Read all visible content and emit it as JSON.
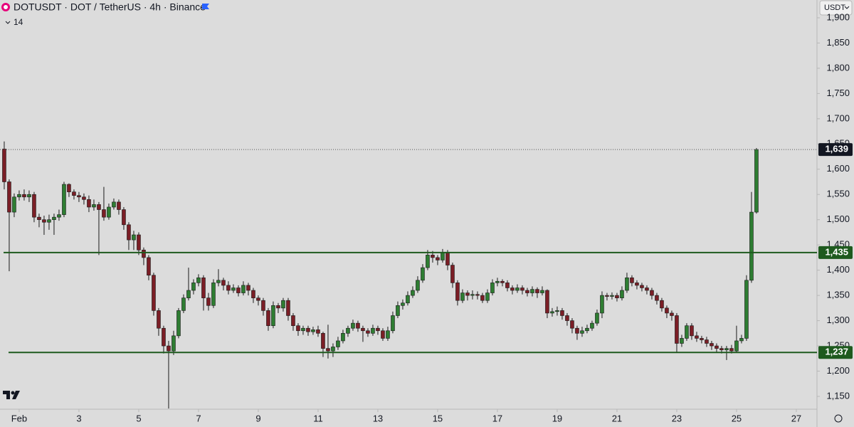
{
  "chart_data": {
    "type": "candlestick",
    "title": "DOTUSDT · DOT / TetherUS · 4h · Binance",
    "indicator_count": "14",
    "currency": "USDT",
    "up_color": "#2e7d32",
    "down_color": "#7b1e26",
    "x": [
      -12,
      -8,
      -4,
      0,
      4,
      8,
      12,
      16,
      20,
      24,
      28,
      32,
      36,
      40,
      44,
      48,
      52,
      56,
      60,
      64,
      68,
      72,
      76,
      80,
      84,
      88,
      92,
      96,
      100,
      104,
      108,
      112,
      116,
      120,
      124,
      128,
      132,
      136,
      140,
      144,
      148,
      152,
      156,
      160,
      164,
      168,
      172,
      176,
      180,
      184,
      188,
      192,
      196,
      200,
      204,
      208,
      212,
      216,
      220,
      224,
      228,
      232,
      236,
      240,
      244,
      248,
      252,
      256,
      260,
      264,
      268,
      272,
      276,
      280,
      284,
      288,
      292,
      296,
      300,
      304,
      308,
      312,
      316,
      320,
      324,
      328,
      332,
      336,
      340,
      344,
      348,
      352,
      356,
      360,
      364,
      368,
      372,
      376,
      380,
      384,
      388,
      392,
      396,
      400,
      404,
      408,
      412,
      416,
      420,
      424,
      428,
      432,
      436,
      440,
      444,
      448,
      452,
      456,
      460,
      464,
      468,
      472,
      476,
      480,
      484,
      488,
      492,
      496,
      500,
      504,
      508,
      512,
      516,
      520,
      524,
      528,
      532,
      536,
      540,
      544,
      548,
      552,
      556,
      560,
      564,
      568,
      572,
      576,
      580,
      584,
      588,
      592
    ],
    "open": [
      1640,
      1575,
      1515,
      1545,
      1550,
      1545,
      1550,
      1505,
      1500,
      1495,
      1500,
      1505,
      1510,
      1570,
      1555,
      1548,
      1545,
      1540,
      1525,
      1530,
      1520,
      1505,
      1525,
      1535,
      1520,
      1490,
      1460,
      1470,
      1440,
      1425,
      1390,
      1320,
      1285,
      1250,
      1240,
      1270,
      1320,
      1345,
      1360,
      1375,
      1385,
      1345,
      1330,
      1375,
      1380,
      1370,
      1360,
      1365,
      1355,
      1370,
      1360,
      1345,
      1340,
      1320,
      1290,
      1330,
      1325,
      1340,
      1310,
      1290,
      1280,
      1285,
      1278,
      1282,
      1275,
      1245,
      1240,
      1248,
      1260,
      1275,
      1285,
      1295,
      1285,
      1280,
      1275,
      1285,
      1280,
      1265,
      1280,
      1310,
      1330,
      1335,
      1350,
      1360,
      1380,
      1405,
      1430,
      1425,
      1420,
      1435,
      1410,
      1375,
      1340,
      1355,
      1350,
      1352,
      1350,
      1340,
      1355,
      1375,
      1378,
      1375,
      1365,
      1360,
      1365,
      1360,
      1355,
      1362,
      1355,
      1360,
      1315,
      1318,
      1320,
      1310,
      1300,
      1285,
      1275,
      1280,
      1285,
      1295,
      1315,
      1350,
      1348,
      1350,
      1345,
      1360,
      1385,
      1375,
      1370,
      1365,
      1360,
      1350,
      1340,
      1325,
      1315,
      1310,
      1255,
      1265,
      1290,
      1270,
      1265,
      1262,
      1255,
      1250,
      1245,
      1242,
      1245,
      1240,
      1260,
      1265,
      1380,
      1515
    ],
    "high": [
      1655,
      1580,
      1552,
      1558,
      1560,
      1558,
      1555,
      1512,
      1508,
      1510,
      1512,
      1520,
      1575,
      1572,
      1560,
      1555,
      1552,
      1548,
      1540,
      1535,
      1565,
      1532,
      1542,
      1540,
      1525,
      1495,
      1478,
      1475,
      1445,
      1430,
      1395,
      1325,
      1290,
      1260,
      1280,
      1325,
      1352,
      1405,
      1382,
      1392,
      1390,
      1355,
      1382,
      1402,
      1385,
      1378,
      1372,
      1370,
      1378,
      1375,
      1365,
      1350,
      1345,
      1325,
      1338,
      1335,
      1345,
      1345,
      1315,
      1295,
      1290,
      1290,
      1288,
      1290,
      1278,
      1292,
      1255,
      1268,
      1282,
      1290,
      1302,
      1300,
      1290,
      1285,
      1292,
      1290,
      1285,
      1288,
      1318,
      1338,
      1342,
      1358,
      1368,
      1388,
      1412,
      1440,
      1438,
      1430,
      1442,
      1440,
      1415,
      1380,
      1362,
      1360,
      1360,
      1358,
      1355,
      1362,
      1382,
      1385,
      1382,
      1380,
      1370,
      1372,
      1370,
      1365,
      1368,
      1366,
      1368,
      1362,
      1325,
      1328,
      1325,
      1315,
      1305,
      1290,
      1288,
      1292,
      1300,
      1322,
      1358,
      1355,
      1356,
      1355,
      1368,
      1395,
      1390,
      1380,
      1375,
      1370,
      1365,
      1355,
      1345,
      1330,
      1320,
      1315,
      1272,
      1295,
      1295,
      1278,
      1270,
      1268,
      1260,
      1255,
      1250,
      1250,
      1252,
      1290,
      1272,
      1390,
      1555,
      1642
    ],
    "low": [
      1560,
      1398,
      1505,
      1538,
      1538,
      1535,
      1495,
      1485,
      1470,
      1480,
      1470,
      1498,
      1505,
      1545,
      1540,
      1535,
      1530,
      1515,
      1518,
      1430,
      1498,
      1500,
      1520,
      1510,
      1480,
      1440,
      1440,
      1430,
      1410,
      1380,
      1310,
      1270,
      1235,
      1126,
      1232,
      1265,
      1315,
      1340,
      1352,
      1368,
      1320,
      1320,
      1325,
      1368,
      1360,
      1352,
      1355,
      1348,
      1350,
      1350,
      1335,
      1330,
      1310,
      1280,
      1285,
      1315,
      1318,
      1300,
      1280,
      1270,
      1272,
      1270,
      1272,
      1268,
      1228,
      1225,
      1228,
      1242,
      1255,
      1268,
      1280,
      1278,
      1258,
      1268,
      1270,
      1272,
      1260,
      1260,
      1275,
      1305,
      1322,
      1330,
      1345,
      1355,
      1375,
      1400,
      1415,
      1410,
      1415,
      1400,
      1365,
      1330,
      1335,
      1340,
      1342,
      1342,
      1335,
      1335,
      1350,
      1368,
      1368,
      1358,
      1352,
      1355,
      1352,
      1348,
      1348,
      1345,
      1350,
      1305,
      1308,
      1310,
      1302,
      1290,
      1275,
      1262,
      1268,
      1275,
      1280,
      1290,
      1305,
      1340,
      1342,
      1338,
      1340,
      1355,
      1368,
      1362,
      1358,
      1352,
      1342,
      1332,
      1318,
      1305,
      1300,
      1238,
      1248,
      1260,
      1262,
      1258,
      1255,
      1248,
      1242,
      1238,
      1235,
      1222,
      1235,
      1238,
      1255,
      1260,
      1375,
      1512
    ],
    "close": [
      1575,
      1515,
      1545,
      1550,
      1545,
      1550,
      1505,
      1500,
      1495,
      1500,
      1505,
      1510,
      1570,
      1555,
      1548,
      1545,
      1540,
      1525,
      1530,
      1520,
      1505,
      1525,
      1535,
      1520,
      1490,
      1460,
      1470,
      1440,
      1425,
      1390,
      1320,
      1285,
      1250,
      1240,
      1270,
      1320,
      1345,
      1360,
      1375,
      1385,
      1345,
      1330,
      1375,
      1380,
      1370,
      1360,
      1365,
      1355,
      1370,
      1360,
      1345,
      1340,
      1320,
      1290,
      1330,
      1325,
      1340,
      1310,
      1290,
      1280,
      1285,
      1278,
      1282,
      1275,
      1245,
      1240,
      1248,
      1260,
      1275,
      1285,
      1295,
      1285,
      1280,
      1275,
      1285,
      1280,
      1265,
      1280,
      1310,
      1330,
      1335,
      1350,
      1360,
      1380,
      1405,
      1430,
      1425,
      1420,
      1435,
      1410,
      1375,
      1340,
      1355,
      1350,
      1352,
      1350,
      1340,
      1355,
      1375,
      1378,
      1375,
      1365,
      1360,
      1365,
      1360,
      1355,
      1362,
      1355,
      1360,
      1315,
      1318,
      1320,
      1310,
      1300,
      1285,
      1275,
      1280,
      1285,
      1295,
      1315,
      1350,
      1348,
      1350,
      1345,
      1360,
      1385,
      1375,
      1370,
      1365,
      1360,
      1350,
      1340,
      1325,
      1315,
      1310,
      1255,
      1265,
      1290,
      1270,
      1265,
      1262,
      1255,
      1250,
      1245,
      1242,
      1245,
      1240,
      1260,
      1265,
      1380,
      1515,
      1639
    ],
    "xlim": [
      -15.4,
      640.6
    ],
    "xticks": [
      {
        "value": 0,
        "label": "Feb"
      },
      {
        "value": 48,
        "label": "3"
      },
      {
        "value": 96,
        "label": "5"
      },
      {
        "value": 144,
        "label": "7"
      },
      {
        "value": 192,
        "label": "9"
      },
      {
        "value": 240,
        "label": "11"
      },
      {
        "value": 288,
        "label": "13"
      },
      {
        "value": 336,
        "label": "15"
      },
      {
        "value": 384,
        "label": "17"
      },
      {
        "value": 432,
        "label": "19"
      },
      {
        "value": 480,
        "label": "21"
      },
      {
        "value": 528,
        "label": "23"
      },
      {
        "value": 576,
        "label": "25"
      },
      {
        "value": 624,
        "label": "27"
      }
    ],
    "ylim": [
      1124.6,
      1935.2
    ],
    "yticks": [
      {
        "value": 1150,
        "label": "1,150"
      },
      {
        "value": 1200,
        "label": "1,200"
      },
      {
        "value": 1250,
        "label": "1,250"
      },
      {
        "value": 1300,
        "label": "1,300"
      },
      {
        "value": 1350,
        "label": "1,350"
      },
      {
        "value": 1400,
        "label": "1,400"
      },
      {
        "value": 1450,
        "label": "1,450"
      },
      {
        "value": 1500,
        "label": "1,500"
      },
      {
        "value": 1550,
        "label": "1,550"
      },
      {
        "value": 1600,
        "label": "1,600"
      },
      {
        "value": 1650,
        "label": "1,650"
      },
      {
        "value": 1700,
        "label": "1,700"
      },
      {
        "value": 1750,
        "label": "1,750"
      },
      {
        "value": 1800,
        "label": "1,800"
      },
      {
        "value": 1850,
        "label": "1,850"
      },
      {
        "value": 1900,
        "label": "1,900"
      }
    ],
    "last_price": {
      "value": 1639,
      "label": "1,639"
    },
    "levels": [
      {
        "value": 1435,
        "label": "1,435",
        "color": "#1e5a1e"
      },
      {
        "value": 1237,
        "label": "1,237",
        "color": "#1e5a1e"
      }
    ]
  }
}
